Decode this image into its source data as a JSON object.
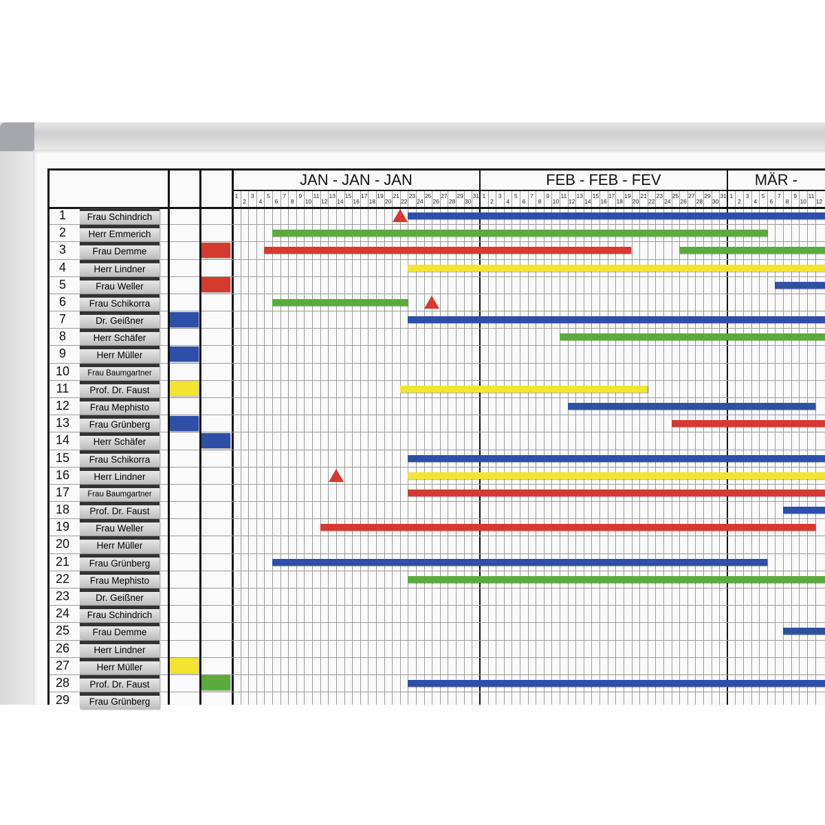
{
  "colors": {
    "blue": "#2e4fa8",
    "green": "#5aab3c",
    "red": "#d63a2e",
    "yellow": "#f2e431"
  },
  "months": [
    {
      "label": "JAN - JAN - JAN",
      "days": 31
    },
    {
      "label": "FEB - FEB - FEV",
      "days": 31
    },
    {
      "label": "MÄR -",
      "days": 31
    }
  ],
  "rows": [
    {
      "num": "1",
      "name": "Frau Schindrich"
    },
    {
      "num": "2",
      "name": "Herr Emmerich"
    },
    {
      "num": "3",
      "name": "Frau Demme"
    },
    {
      "num": "4",
      "name": "Herr Lindner"
    },
    {
      "num": "5",
      "name": "Frau Weller"
    },
    {
      "num": "6",
      "name": "Frau Schikorra"
    },
    {
      "num": "7",
      "name": "Dr. Geißner"
    },
    {
      "num": "8",
      "name": "Herr Schäfer"
    },
    {
      "num": "9",
      "name": "Herr Müller"
    },
    {
      "num": "10",
      "name": "Frau Baumgartner"
    },
    {
      "num": "11",
      "name": "Prof. Dr. Faust"
    },
    {
      "num": "12",
      "name": "Frau Mephisto"
    },
    {
      "num": "13",
      "name": "Frau Grünberg"
    },
    {
      "num": "14",
      "name": "Herr Schäfer"
    },
    {
      "num": "15",
      "name": "Frau Schikorra"
    },
    {
      "num": "16",
      "name": "Herr Lindner"
    },
    {
      "num": "17",
      "name": "Frau Baumgartner"
    },
    {
      "num": "18",
      "name": "Prof. Dr. Faust"
    },
    {
      "num": "19",
      "name": "Frau Weller"
    },
    {
      "num": "20",
      "name": "Herr Müller"
    },
    {
      "num": "21",
      "name": "Frau Grünberg"
    },
    {
      "num": "22",
      "name": "Frau Mephisto"
    },
    {
      "num": "23",
      "name": "Dr. Geißner"
    },
    {
      "num": "24",
      "name": "Frau Schindrich"
    },
    {
      "num": "25",
      "name": "Frau Demme"
    },
    {
      "num": "26",
      "name": "Herr Lindner"
    },
    {
      "num": "27",
      "name": "Herr Müller"
    },
    {
      "num": "28",
      "name": "Prof. Dr. Faust"
    },
    {
      "num": "29",
      "name": "Frau Grünberg"
    }
  ],
  "markers": [
    {
      "row": 3,
      "column": "B",
      "color": "red"
    },
    {
      "row": 5,
      "column": "B",
      "color": "red"
    },
    {
      "row": 7,
      "column": "A",
      "color": "blue"
    },
    {
      "row": 9,
      "column": "A",
      "color": "blue"
    },
    {
      "row": 11,
      "column": "A",
      "color": "yellow"
    },
    {
      "row": 13,
      "column": "A",
      "color": "blue"
    },
    {
      "row": 14,
      "column": "B",
      "color": "blue"
    },
    {
      "row": 27,
      "column": "A",
      "color": "yellow"
    },
    {
      "row": 28,
      "column": "B",
      "color": "green"
    }
  ],
  "bars": [
    {
      "row": 1,
      "color": "blue",
      "start": [
        1,
        23
      ],
      "end": null
    },
    {
      "row": 2,
      "color": "green",
      "start": [
        1,
        6
      ],
      "end": [
        3,
        5
      ]
    },
    {
      "row": 3,
      "color": "red",
      "start": [
        1,
        5
      ],
      "end": [
        2,
        19
      ]
    },
    {
      "row": 3,
      "color": "green",
      "start": [
        2,
        26
      ],
      "end": null
    },
    {
      "row": 4,
      "color": "yellow",
      "start": [
        1,
        23
      ],
      "end": null
    },
    {
      "row": 5,
      "color": "blue",
      "start": [
        3,
        7
      ],
      "end": null
    },
    {
      "row": 6,
      "color": "green",
      "start": [
        1,
        6
      ],
      "end": [
        1,
        22
      ]
    },
    {
      "row": 7,
      "color": "blue",
      "start": [
        1,
        23
      ],
      "end": null
    },
    {
      "row": 8,
      "color": "green",
      "start": [
        2,
        11
      ],
      "end": null
    },
    {
      "row": 11,
      "color": "yellow",
      "start": [
        1,
        22
      ],
      "end": [
        2,
        21
      ]
    },
    {
      "row": 12,
      "color": "blue",
      "start": [
        2,
        12
      ],
      "end": [
        3,
        11
      ]
    },
    {
      "row": 13,
      "color": "red",
      "start": [
        2,
        25
      ],
      "end": null
    },
    {
      "row": 15,
      "color": "blue",
      "start": [
        1,
        23
      ],
      "end": null
    },
    {
      "row": 16,
      "color": "yellow",
      "start": [
        1,
        23
      ],
      "end": null
    },
    {
      "row": 17,
      "color": "red",
      "start": [
        1,
        23
      ],
      "end": null
    },
    {
      "row": 18,
      "color": "blue",
      "start": [
        3,
        8
      ],
      "end": null
    },
    {
      "row": 19,
      "color": "red",
      "start": [
        1,
        12
      ],
      "end": [
        3,
        11
      ]
    },
    {
      "row": 21,
      "color": "blue",
      "start": [
        1,
        6
      ],
      "end": [
        3,
        5
      ]
    },
    {
      "row": 22,
      "color": "green",
      "start": [
        1,
        23
      ],
      "end": null
    },
    {
      "row": 25,
      "color": "blue",
      "start": [
        3,
        8
      ],
      "end": null
    },
    {
      "row": 28,
      "color": "blue",
      "start": [
        1,
        23
      ],
      "end": null
    }
  ],
  "triangles": [
    {
      "row": 1,
      "date": [
        1,
        21
      ],
      "color": "red"
    },
    {
      "row": 6,
      "date": [
        1,
        25
      ],
      "color": "red"
    },
    {
      "row": 16,
      "date": [
        1,
        13
      ],
      "color": "red"
    }
  ]
}
